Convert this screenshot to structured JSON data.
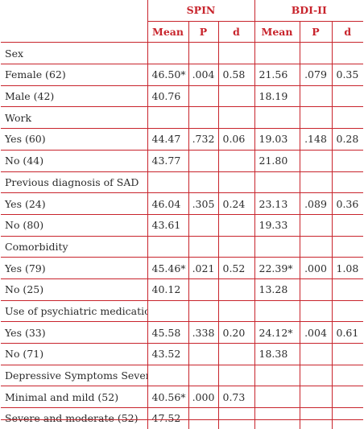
{
  "header": {
    "group1": "SPIN",
    "group2": "BDI-II"
  },
  "subheader": {
    "mean1": "Mean",
    "p1": "P",
    "d1": "d",
    "mean2": "Mean",
    "p2": "P",
    "d2": "d"
  },
  "sections": [
    {
      "title": "Sex",
      "rows": [
        {
          "label": "Female (62)",
          "spin_mean": "46.50*",
          "spin_p": ".004",
          "spin_d": "0.58",
          "bdi_mean": "21.56",
          "bdi_p": ".079",
          "bdi_d": "0.35"
        },
        {
          "label": "Male (42)",
          "spin_mean": "40.76",
          "spin_p": "",
          "spin_d": "",
          "bdi_mean": "18.19",
          "bdi_p": "",
          "bdi_d": ""
        }
      ]
    },
    {
      "title": "Work",
      "rows": [
        {
          "label": "Yes (60)",
          "spin_mean": "44.47",
          "spin_p": ".732",
          "spin_d": "0.06",
          "bdi_mean": "19.03",
          "bdi_p": ".148",
          "bdi_d": "0.28"
        },
        {
          "label": "No (44)",
          "spin_mean": "43.77",
          "spin_p": "",
          "spin_d": "",
          "bdi_mean": "21.80",
          "bdi_p": "",
          "bdi_d": ""
        }
      ]
    },
    {
      "title": "Previous diagnosis of SAD",
      "rows": [
        {
          "label": "Yes (24)",
          "spin_mean": "46.04",
          "spin_p": ".305",
          "spin_d": "0.24",
          "bdi_mean": "23.13",
          "bdi_p": ".089",
          "bdi_d": "0.36"
        },
        {
          "label": "No (80)",
          "spin_mean": "43.61",
          "spin_p": "",
          "spin_d": "",
          "bdi_mean": "19.33",
          "bdi_p": "",
          "bdi_d": ""
        }
      ]
    },
    {
      "title": "Comorbidity",
      "rows": [
        {
          "label": "Yes (79)",
          "spin_mean": "45.46*",
          "spin_p": ".021",
          "spin_d": "0.52",
          "bdi_mean": "22.39*",
          "bdi_p": ".000",
          "bdi_d": "1.08"
        },
        {
          "label": "No (25)",
          "spin_mean": "40.12",
          "spin_p": "",
          "spin_d": "",
          "bdi_mean": "13.28",
          "bdi_p": "",
          "bdi_d": ""
        }
      ]
    },
    {
      "title": "Use of psychiatric medication",
      "rows": [
        {
          "label": "Yes (33)",
          "spin_mean": "45.58",
          "spin_p": ".338",
          "spin_d": "0.20",
          "bdi_mean": "24.12*",
          "bdi_p": ".004",
          "bdi_d": "0.61"
        },
        {
          "label": "No (71)",
          "spin_mean": "43.52",
          "spin_p": "",
          "spin_d": "",
          "bdi_mean": "18.38",
          "bdi_p": "",
          "bdi_d": ""
        }
      ]
    },
    {
      "title": "Depressive Symptoms Severity - BDI-II",
      "rows": [
        {
          "label": "Minimal and mild (52)",
          "spin_mean": "40.56*",
          "spin_p": ".000",
          "spin_d": "0.73",
          "bdi_mean": "",
          "bdi_p": "",
          "bdi_d": ""
        },
        {
          "label": "Severe and moderate (52)",
          "spin_mean": "47.52",
          "spin_p": "",
          "spin_d": "",
          "bdi_mean": "",
          "bdi_p": "",
          "bdi_d": ""
        }
      ]
    }
  ]
}
